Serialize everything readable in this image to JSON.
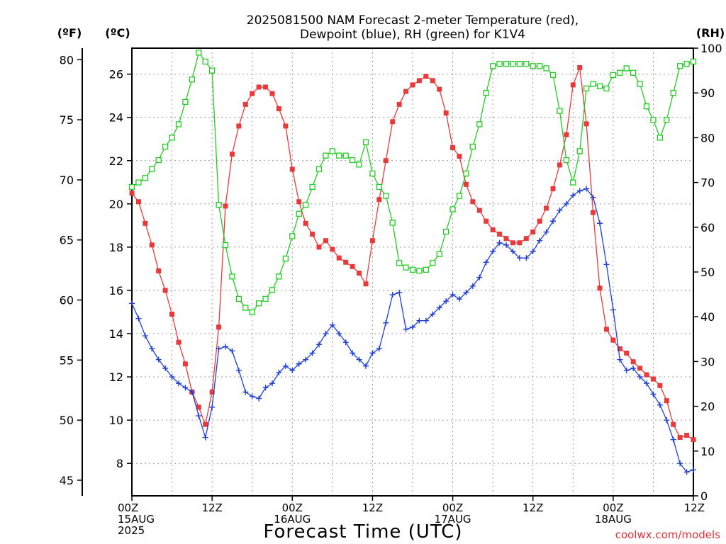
{
  "chart_data": {
    "type": "line",
    "title_lines": [
      "2025081500 NAM Forecast 2-meter Temperature (red),",
      "Dewpoint (blue), RH (green) for K1V4"
    ],
    "xlabel": "Forecast Time (UTC)",
    "credit": "coolwx.com/models",
    "axes": {
      "fahrenheit": {
        "unit_label": "(ºF)",
        "ticks": [
          45,
          50,
          55,
          60,
          65,
          70,
          75,
          80
        ]
      },
      "celsius": {
        "unit_label": "(ºC)",
        "ticks": [
          8,
          10,
          12,
          14,
          16,
          18,
          20,
          22,
          24,
          26
        ],
        "ylim": [
          6.5,
          27.2
        ]
      },
      "rh": {
        "unit_label": "(RH)",
        "ticks": [
          0,
          10,
          20,
          30,
          40,
          50,
          60,
          70,
          80,
          90,
          100
        ],
        "ylim": [
          0,
          100
        ]
      }
    },
    "x_range_hours": [
      0,
      84
    ],
    "x_ticks": [
      {
        "hour": 0,
        "lines": [
          "00Z",
          "15AUG",
          "2025"
        ]
      },
      {
        "hour": 12,
        "lines": [
          "12Z"
        ]
      },
      {
        "hour": 24,
        "lines": [
          "00Z",
          "16AUG"
        ]
      },
      {
        "hour": 36,
        "lines": [
          "12Z"
        ]
      },
      {
        "hour": 48,
        "lines": [
          "00Z",
          "17AUG"
        ]
      },
      {
        "hour": 60,
        "lines": [
          "12Z"
        ]
      },
      {
        "hour": 72,
        "lines": [
          "00Z",
          "18AUG"
        ]
      },
      {
        "hour": 84,
        "lines": [
          "12Z"
        ]
      }
    ],
    "grid": true,
    "series": [
      {
        "name": "Temperature",
        "color": "#e83a3a",
        "axis": "celsius",
        "marker": "filled-square",
        "points": [
          [
            0,
            20.5
          ],
          [
            1,
            20.1
          ],
          [
            2,
            19.1
          ],
          [
            3,
            18.1
          ],
          [
            4,
            16.9
          ],
          [
            5,
            16.0
          ],
          [
            6,
            14.9
          ],
          [
            7,
            13.6
          ],
          [
            8,
            12.6
          ],
          [
            9,
            11.3
          ],
          [
            10,
            10.6
          ],
          [
            11,
            9.8
          ],
          [
            12,
            11.3
          ],
          [
            13,
            14.3
          ],
          [
            14,
            19.9
          ],
          [
            15,
            22.3
          ],
          [
            16,
            23.6
          ],
          [
            17,
            24.6
          ],
          [
            18,
            25.1
          ],
          [
            19,
            25.4
          ],
          [
            20,
            25.4
          ],
          [
            21,
            25.1
          ],
          [
            22,
            24.4
          ],
          [
            23,
            23.6
          ],
          [
            24,
            21.6
          ],
          [
            25,
            20.1
          ],
          [
            26,
            19.1
          ],
          [
            27,
            18.6
          ],
          [
            28,
            18.0
          ],
          [
            29,
            18.3
          ],
          [
            30,
            17.9
          ],
          [
            31,
            17.5
          ],
          [
            32,
            17.3
          ],
          [
            33,
            17.1
          ],
          [
            34,
            16.8
          ],
          [
            35,
            16.3
          ],
          [
            36,
            18.3
          ],
          [
            37,
            20.2
          ],
          [
            38,
            22.0
          ],
          [
            39,
            23.8
          ],
          [
            40,
            24.6
          ],
          [
            41,
            25.2
          ],
          [
            42,
            25.5
          ],
          [
            43,
            25.7
          ],
          [
            44,
            25.9
          ],
          [
            45,
            25.7
          ],
          [
            46,
            25.3
          ],
          [
            47,
            24.2
          ],
          [
            48,
            22.6
          ],
          [
            49,
            22.2
          ],
          [
            50,
            20.9
          ],
          [
            51,
            20.1
          ],
          [
            52,
            19.7
          ],
          [
            53,
            19.2
          ],
          [
            54,
            18.8
          ],
          [
            55,
            18.6
          ],
          [
            56,
            18.4
          ],
          [
            57,
            18.2
          ],
          [
            58,
            18.2
          ],
          [
            59,
            18.4
          ],
          [
            60,
            18.7
          ],
          [
            61,
            19.2
          ],
          [
            62,
            19.8
          ],
          [
            63,
            20.7
          ],
          [
            64,
            21.8
          ],
          [
            65,
            23.2
          ],
          [
            66,
            25.5
          ],
          [
            67,
            26.3
          ],
          [
            68,
            23.7
          ],
          [
            69,
            19.6
          ],
          [
            70,
            16.1
          ],
          [
            71,
            14.2
          ],
          [
            72,
            13.7
          ],
          [
            73,
            13.3
          ],
          [
            74,
            13.1
          ],
          [
            75,
            12.7
          ],
          [
            76,
            12.4
          ],
          [
            77,
            12.1
          ],
          [
            78,
            11.9
          ],
          [
            79,
            11.6
          ],
          [
            80,
            10.9
          ],
          [
            81,
            9.8
          ],
          [
            82,
            9.2
          ],
          [
            83,
            9.3
          ],
          [
            84,
            9.1
          ]
        ]
      },
      {
        "name": "Dewpoint",
        "color": "#1f3fd6",
        "axis": "celsius",
        "marker": "plus",
        "points": [
          [
            0,
            15.4
          ],
          [
            1,
            14.7
          ],
          [
            2,
            13.9
          ],
          [
            3,
            13.3
          ],
          [
            4,
            12.8
          ],
          [
            5,
            12.4
          ],
          [
            6,
            12.0
          ],
          [
            7,
            11.7
          ],
          [
            8,
            11.5
          ],
          [
            9,
            11.3
          ],
          [
            10,
            10.2
          ],
          [
            11,
            9.2
          ],
          [
            12,
            10.6
          ],
          [
            13,
            13.3
          ],
          [
            14,
            13.4
          ],
          [
            15,
            13.2
          ],
          [
            16,
            12.3
          ],
          [
            17,
            11.3
          ],
          [
            18,
            11.1
          ],
          [
            19,
            11.0
          ],
          [
            20,
            11.5
          ],
          [
            21,
            11.7
          ],
          [
            22,
            12.2
          ],
          [
            23,
            12.5
          ],
          [
            24,
            12.3
          ],
          [
            25,
            12.6
          ],
          [
            26,
            12.8
          ],
          [
            27,
            13.1
          ],
          [
            28,
            13.5
          ],
          [
            29,
            14.0
          ],
          [
            30,
            14.4
          ],
          [
            31,
            14.0
          ],
          [
            32,
            13.6
          ],
          [
            33,
            13.1
          ],
          [
            34,
            12.8
          ],
          [
            35,
            12.5
          ],
          [
            36,
            13.1
          ],
          [
            37,
            13.3
          ],
          [
            38,
            14.5
          ],
          [
            39,
            15.8
          ],
          [
            40,
            15.9
          ],
          [
            41,
            14.2
          ],
          [
            42,
            14.3
          ],
          [
            43,
            14.6
          ],
          [
            44,
            14.6
          ],
          [
            45,
            14.9
          ],
          [
            46,
            15.2
          ],
          [
            47,
            15.5
          ],
          [
            48,
            15.8
          ],
          [
            49,
            15.6
          ],
          [
            50,
            15.9
          ],
          [
            51,
            16.2
          ],
          [
            52,
            16.6
          ],
          [
            53,
            17.3
          ],
          [
            54,
            17.8
          ],
          [
            55,
            18.2
          ],
          [
            56,
            18.1
          ],
          [
            57,
            17.8
          ],
          [
            58,
            17.5
          ],
          [
            59,
            17.5
          ],
          [
            60,
            17.8
          ],
          [
            61,
            18.3
          ],
          [
            62,
            18.7
          ],
          [
            63,
            19.2
          ],
          [
            64,
            19.7
          ],
          [
            65,
            20.0
          ],
          [
            66,
            20.4
          ],
          [
            67,
            20.6
          ],
          [
            68,
            20.7
          ],
          [
            69,
            20.3
          ],
          [
            70,
            19.1
          ],
          [
            71,
            17.2
          ],
          [
            72,
            15.1
          ],
          [
            73,
            12.8
          ],
          [
            74,
            12.3
          ],
          [
            75,
            12.4
          ],
          [
            76,
            12.0
          ],
          [
            77,
            11.7
          ],
          [
            78,
            11.2
          ],
          [
            79,
            10.7
          ],
          [
            80,
            10.0
          ],
          [
            81,
            9.1
          ],
          [
            82,
            8.0
          ],
          [
            83,
            7.6
          ],
          [
            84,
            7.7
          ]
        ]
      },
      {
        "name": "RH",
        "color": "#22cc22",
        "axis": "rh",
        "marker": "open-square",
        "points": [
          [
            0,
            69.0
          ],
          [
            1,
            70.0
          ],
          [
            2,
            71.0
          ],
          [
            3,
            73.0
          ],
          [
            4,
            75.0
          ],
          [
            5,
            78.0
          ],
          [
            6,
            80.0
          ],
          [
            7,
            83.0
          ],
          [
            8,
            88.0
          ],
          [
            9,
            93.0
          ],
          [
            10,
            99.0
          ],
          [
            11,
            97.0
          ],
          [
            12,
            95.0
          ],
          [
            13,
            65.0
          ],
          [
            14,
            56.0
          ],
          [
            15,
            49.0
          ],
          [
            16,
            44.0
          ],
          [
            17,
            42.0
          ],
          [
            18,
            41.0
          ],
          [
            19,
            43.0
          ],
          [
            20,
            44.0
          ],
          [
            21,
            46.0
          ],
          [
            22,
            49.0
          ],
          [
            23,
            53.0
          ],
          [
            24,
            58.0
          ],
          [
            25,
            63.0
          ],
          [
            26,
            65.0
          ],
          [
            27,
            69.0
          ],
          [
            28,
            73.0
          ],
          [
            29,
            76.0
          ],
          [
            30,
            77.0
          ],
          [
            31,
            76.0
          ],
          [
            32,
            76.0
          ],
          [
            33,
            75.0
          ],
          [
            34,
            74.0
          ],
          [
            35,
            79.0
          ],
          [
            36,
            72.0
          ],
          [
            37,
            69.0
          ],
          [
            38,
            67.0
          ],
          [
            39,
            61.0
          ],
          [
            40,
            52.0
          ],
          [
            41,
            51.0
          ],
          [
            42,
            50.5
          ],
          [
            43,
            50.3
          ],
          [
            44,
            50.5
          ],
          [
            45,
            52.0
          ],
          [
            46,
            54.0
          ],
          [
            47,
            59.0
          ],
          [
            48,
            64.0
          ],
          [
            49,
            67.0
          ],
          [
            50,
            72.0
          ],
          [
            51,
            78.0
          ],
          [
            52,
            83.0
          ],
          [
            53,
            90.0
          ],
          [
            54,
            96.0
          ],
          [
            55,
            96.5
          ],
          [
            56,
            96.5
          ],
          [
            57,
            96.5
          ],
          [
            58,
            96.5
          ],
          [
            59,
            96.5
          ],
          [
            60,
            96.0
          ],
          [
            61,
            96.0
          ],
          [
            62,
            95.5
          ],
          [
            63,
            94.0
          ],
          [
            64,
            86.0
          ],
          [
            65,
            75.0
          ],
          [
            66,
            70.0
          ],
          [
            67,
            77.0
          ],
          [
            68,
            91.0
          ],
          [
            69,
            92.0
          ],
          [
            70,
            91.5
          ],
          [
            71,
            91.0
          ],
          [
            72,
            94.0
          ],
          [
            73,
            94.5
          ],
          [
            74,
            95.5
          ],
          [
            75,
            94.5
          ],
          [
            76,
            92.0
          ],
          [
            77,
            87.0
          ],
          [
            78,
            84.0
          ],
          [
            79,
            80.0
          ],
          [
            80,
            84.0
          ],
          [
            81,
            90.0
          ],
          [
            82,
            96.0
          ],
          [
            83,
            96.5
          ],
          [
            84,
            97.0
          ]
        ]
      }
    ]
  }
}
